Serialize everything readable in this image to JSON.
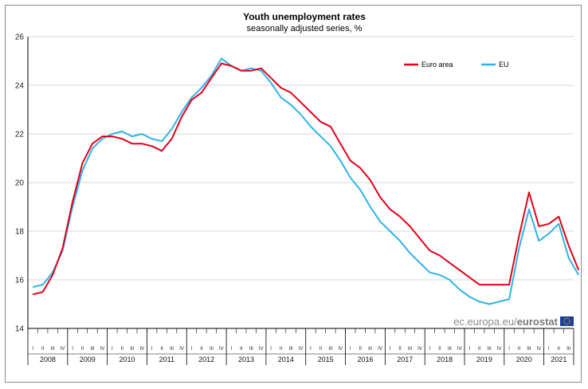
{
  "chart_data": {
    "type": "line",
    "title": "Youth unemployment rates",
    "subtitle": "seasonally adjusted series, %",
    "ylim": [
      14,
      26
    ],
    "yticks": [
      14,
      16,
      18,
      20,
      22,
      24,
      26
    ],
    "years": [
      "2008",
      "2009",
      "2010",
      "2011",
      "2012",
      "2013",
      "2014",
      "2015",
      "2016",
      "2017",
      "2018",
      "2019",
      "2020",
      "2021"
    ],
    "quarters": [
      "I",
      "II",
      "III",
      "IV"
    ],
    "last_year_quarters": 3,
    "x_start": 2008.0,
    "x_end": 2021.75,
    "grid": true,
    "legend": "top-right",
    "credit": "ec.europa.eu/",
    "credit_bold": "eurostat",
    "series": [
      {
        "name": "Euro area",
        "color": "#e3001b",
        "points": [
          [
            2008.0,
            15.4
          ],
          [
            2008.25,
            15.5
          ],
          [
            2008.5,
            16.2
          ],
          [
            2008.75,
            17.3
          ],
          [
            2009.0,
            19.2
          ],
          [
            2009.25,
            20.8
          ],
          [
            2009.5,
            21.6
          ],
          [
            2009.75,
            21.9
          ],
          [
            2010.0,
            21.9
          ],
          [
            2010.25,
            21.8
          ],
          [
            2010.5,
            21.6
          ],
          [
            2010.75,
            21.6
          ],
          [
            2011.0,
            21.5
          ],
          [
            2011.25,
            21.3
          ],
          [
            2011.5,
            21.8
          ],
          [
            2011.75,
            22.7
          ],
          [
            2012.0,
            23.4
          ],
          [
            2012.25,
            23.7
          ],
          [
            2012.5,
            24.3
          ],
          [
            2012.75,
            24.9
          ],
          [
            2013.0,
            24.8
          ],
          [
            2013.25,
            24.6
          ],
          [
            2013.5,
            24.6
          ],
          [
            2013.75,
            24.7
          ],
          [
            2014.0,
            24.3
          ],
          [
            2014.25,
            23.9
          ],
          [
            2014.5,
            23.7
          ],
          [
            2014.75,
            23.3
          ],
          [
            2015.0,
            22.9
          ],
          [
            2015.25,
            22.5
          ],
          [
            2015.5,
            22.3
          ],
          [
            2015.75,
            21.6
          ],
          [
            2016.0,
            20.9
          ],
          [
            2016.25,
            20.6
          ],
          [
            2016.5,
            20.1
          ],
          [
            2016.75,
            19.4
          ],
          [
            2017.0,
            18.9
          ],
          [
            2017.25,
            18.6
          ],
          [
            2017.5,
            18.2
          ],
          [
            2017.75,
            17.7
          ],
          [
            2018.0,
            17.2
          ],
          [
            2018.25,
            17.0
          ],
          [
            2018.5,
            16.7
          ],
          [
            2018.75,
            16.4
          ],
          [
            2019.0,
            16.1
          ],
          [
            2019.25,
            15.8
          ],
          [
            2019.5,
            15.8
          ],
          [
            2019.75,
            15.8
          ],
          [
            2020.0,
            15.8
          ],
          [
            2020.25,
            17.8
          ],
          [
            2020.5,
            19.6
          ],
          [
            2020.75,
            18.2
          ],
          [
            2021.0,
            18.3
          ],
          [
            2021.25,
            18.6
          ],
          [
            2021.5,
            17.4
          ],
          [
            2021.75,
            16.4
          ]
        ]
      },
      {
        "name": "EU",
        "color": "#2fb3e6",
        "points": [
          [
            2008.0,
            15.7
          ],
          [
            2008.25,
            15.8
          ],
          [
            2008.5,
            16.3
          ],
          [
            2008.75,
            17.2
          ],
          [
            2009.0,
            19.0
          ],
          [
            2009.25,
            20.5
          ],
          [
            2009.5,
            21.4
          ],
          [
            2009.75,
            21.8
          ],
          [
            2010.0,
            22.0
          ],
          [
            2010.25,
            22.1
          ],
          [
            2010.5,
            21.9
          ],
          [
            2010.75,
            22.0
          ],
          [
            2011.0,
            21.8
          ],
          [
            2011.25,
            21.7
          ],
          [
            2011.5,
            22.2
          ],
          [
            2011.75,
            22.9
          ],
          [
            2012.0,
            23.5
          ],
          [
            2012.25,
            23.9
          ],
          [
            2012.5,
            24.4
          ],
          [
            2012.75,
            25.1
          ],
          [
            2013.0,
            24.8
          ],
          [
            2013.25,
            24.6
          ],
          [
            2013.5,
            24.7
          ],
          [
            2013.75,
            24.6
          ],
          [
            2014.0,
            24.1
          ],
          [
            2014.25,
            23.5
          ],
          [
            2014.5,
            23.2
          ],
          [
            2014.75,
            22.8
          ],
          [
            2015.0,
            22.3
          ],
          [
            2015.25,
            21.9
          ],
          [
            2015.5,
            21.5
          ],
          [
            2015.75,
            20.9
          ],
          [
            2016.0,
            20.2
          ],
          [
            2016.25,
            19.7
          ],
          [
            2016.5,
            19.0
          ],
          [
            2016.75,
            18.4
          ],
          [
            2017.0,
            18.0
          ],
          [
            2017.25,
            17.6
          ],
          [
            2017.5,
            17.1
          ],
          [
            2017.75,
            16.7
          ],
          [
            2018.0,
            16.3
          ],
          [
            2018.25,
            16.2
          ],
          [
            2018.5,
            16.0
          ],
          [
            2018.75,
            15.6
          ],
          [
            2019.0,
            15.3
          ],
          [
            2019.25,
            15.1
          ],
          [
            2019.5,
            15.0
          ],
          [
            2019.75,
            15.1
          ],
          [
            2020.0,
            15.2
          ],
          [
            2020.25,
            17.3
          ],
          [
            2020.5,
            18.9
          ],
          [
            2020.75,
            17.6
          ],
          [
            2021.0,
            17.9
          ],
          [
            2021.25,
            18.3
          ],
          [
            2021.5,
            16.9
          ],
          [
            2021.75,
            16.2
          ]
        ]
      }
    ]
  }
}
